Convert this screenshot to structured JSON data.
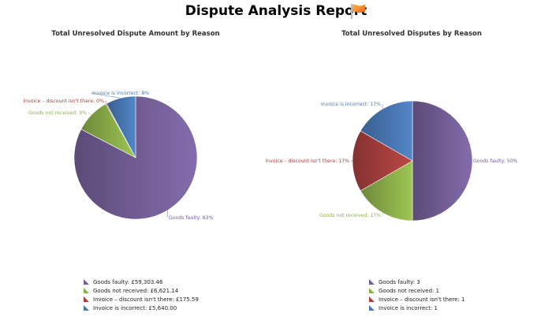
{
  "report": {
    "title": "Dispute Analysis Report"
  },
  "icons": {
    "title_icon": "flag-icon"
  },
  "colors": {
    "goods_faulty": "#76609a",
    "goods_not_received": "#8db04b",
    "invoice_discount": "#a8403f",
    "invoice_incorrect": "#4a78b4"
  },
  "chart_data": [
    {
      "type": "pie",
      "title": "Total Unresolved Dispute Amount by Reason",
      "start": "top-clockwise",
      "slices": [
        {
          "name": "Goods faulty",
          "value": 59303.46,
          "percent": 83,
          "label": "Goods faulty: 83%",
          "legend": "Goods faulty: £59,303.46",
          "color": "#76609a"
        },
        {
          "name": "Goods not received",
          "value": 6621.14,
          "percent": 9,
          "label": "Goods not received: 9%",
          "legend": "Goods not received: £6,621.14",
          "color": "#8db04b"
        },
        {
          "name": "Invoice – discount isn't there",
          "value": 175.59,
          "percent": 0,
          "label": "Invoice – discount isn't there: 0%",
          "legend": "Invoice – discount isn't there: £175.59",
          "color": "#a8403f"
        },
        {
          "name": "Invoice is incorrect",
          "value": 5640.0,
          "percent": 8,
          "label": "Invoice is incorrect: 8%",
          "legend": "Invoice is incorrect: £5,640.00",
          "color": "#4a78b4"
        }
      ]
    },
    {
      "type": "pie",
      "title": "Total Unresolved Disputes by Reason",
      "start": "top-clockwise",
      "slices": [
        {
          "name": "Goods faulty",
          "value": 3,
          "percent": 50,
          "label": "Goods faulty: 50%",
          "legend": "Goods faulty: 3",
          "color": "#76609a"
        },
        {
          "name": "Goods not received",
          "value": 1,
          "percent": 17,
          "label": "Goods not received: 17%",
          "legend": "Goods not received: 1",
          "color": "#8db04b"
        },
        {
          "name": "Invoice – discount isn't there",
          "value": 1,
          "percent": 17,
          "label": "Invoice – discount isn't there: 17%",
          "legend": "Invoice – discount isn't there: 1",
          "color": "#a8403f"
        },
        {
          "name": "Invoice is incorrect",
          "value": 1,
          "percent": 17,
          "label": "Invoice is incorrect: 17%",
          "legend": "Invoice is incorrect: 1",
          "color": "#4a78b4"
        }
      ]
    }
  ]
}
